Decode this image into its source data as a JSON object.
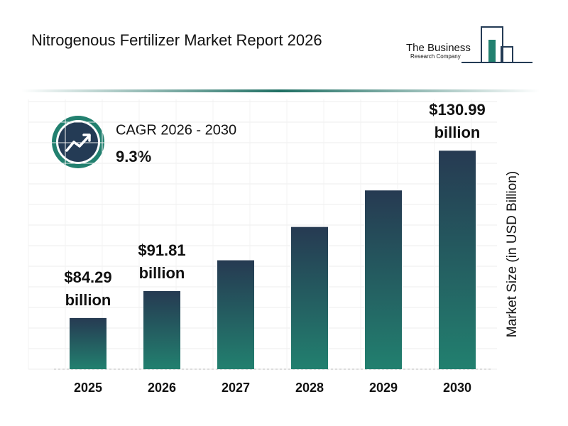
{
  "header": {
    "logo_line1": "The Business",
    "logo_line2": "Research Company"
  },
  "chart_data": {
    "type": "bar",
    "title": "Nitrogenous Fertilizer Market Report 2026",
    "cagr_label": "CAGR 2026 - 2030",
    "cagr_value": "9.3%",
    "y_axis_label": "Market Size (in USD Billion)",
    "categories": [
      "2025",
      "2026",
      "2027",
      "2028",
      "2029",
      "2030"
    ],
    "values": [
      84.29,
      91.81,
      100.4,
      109.7,
      119.9,
      130.99
    ],
    "value_labels": [
      "$84.29 billion",
      "$91.81 billion",
      null,
      null,
      null,
      "$130.99 billion"
    ],
    "color_top": "#263a52",
    "color_bottom": "#22806f",
    "ylim": [
      70,
      135
    ],
    "grid": true
  }
}
